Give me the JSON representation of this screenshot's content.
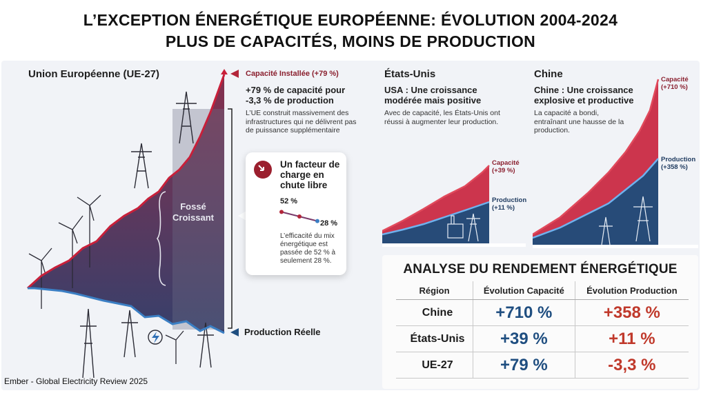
{
  "title": {
    "line1": "L’EXCEPTION ÉNERGÉTIQUE EUROPÉENNE: ÉVOLUTION 2004-2024",
    "line2": "PLUS DE CAPACITÉS, MOINS DE PRODUCTION"
  },
  "eu": {
    "heading": "Union Européenne (UE-27)",
    "cap_label": "Capacité Installée (+79 %)",
    "subtitle": "+79 % de capacité pour -3,3 % de production",
    "desc": "L’UE construit massivement des infrastructures qui ne délivrent pas de puissance supplémentaire",
    "gap_label": "Fossé Croissant",
    "prod_label": "Production Réelle"
  },
  "load_factor": {
    "title": "Un facteur de charge en chute libre",
    "start": "52 %",
    "end": "28 %",
    "desc": "L’efficacité du mix énergétique est passée de 52 % à seulement 28 %.",
    "values": [
      52,
      40,
      28
    ]
  },
  "usa": {
    "heading": "États-Unis",
    "subtitle": "USA : Une croissance modérée mais positive",
    "desc": "Avec de capacité, les États-Unis ont réussi à augmenter leur production.",
    "cap_label": "Capacité (+39 %)",
    "prod_label": "Production (+11 %)"
  },
  "china": {
    "heading": "Chine",
    "subtitle": "Chine : Une croissance explosive et productive",
    "desc": "La capacité a bondi, entraînant une hausse de la production.",
    "cap_label": "Capacité (+710 %)",
    "prod_label": "Production (+358 %)"
  },
  "analysis": {
    "title": "ANALYSE DU RENDEMENT ÉNERGÉTIQUE",
    "headers": [
      "Région",
      "Évolution Capacité",
      "Évolution Production"
    ],
    "rows": [
      {
        "region": "Chine",
        "capacity": "+710 %",
        "production": "+358 %"
      },
      {
        "region": "États-Unis",
        "capacity": "+39 %",
        "production": "+11 %"
      },
      {
        "region": "UE-27",
        "capacity": "+79 %",
        "production": "-3,3 %"
      }
    ]
  },
  "source": "Ember - Global Electricity Review 2025",
  "colors": {
    "capacity": "#b3263a",
    "production": "#3b7fc4",
    "cap_text": "#1f4e80",
    "prod_text": "#c0392b"
  },
  "chart_data": {
    "type": "table",
    "categories": [
      "Chine",
      "États-Unis",
      "UE-27"
    ],
    "series": [
      {
        "name": "Évolution Capacité",
        "values": [
          710,
          39,
          79
        ]
      },
      {
        "name": "Évolution Production",
        "values": [
          358,
          11,
          -3.3
        ]
      }
    ]
  }
}
